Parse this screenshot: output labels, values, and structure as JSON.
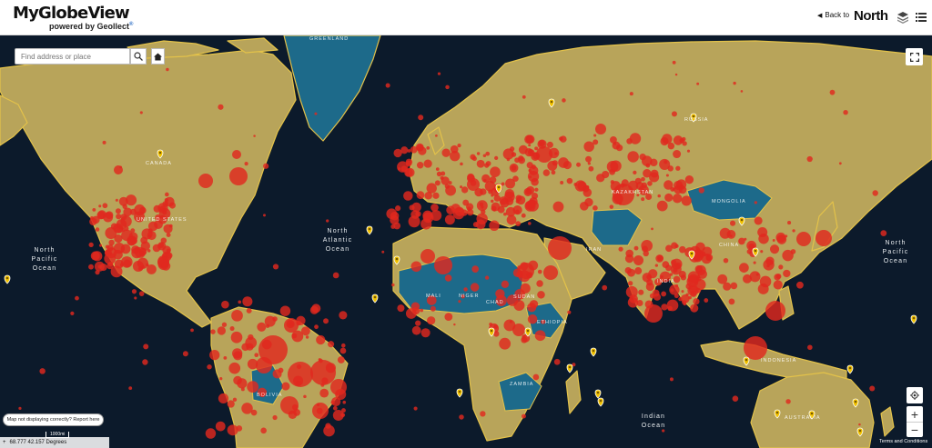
{
  "header": {
    "logo_title": "MyGlobeView",
    "logo_subtitle": "powered by Geollect",
    "logo_registered": "®",
    "back_arrow": "◀",
    "back_label": "Back to",
    "brand": "North"
  },
  "search": {
    "placeholder": "Find address or place"
  },
  "map": {
    "ocean_labels": {
      "north_atlantic": "North\nAtlantic\nOcean",
      "north_pacific_left": "North\nPacific\nOcean",
      "north_pacific_right": "North\nPacific\nOcean",
      "indian": "Indian\nOcean"
    },
    "country_labels": {
      "greenland": "GREENLAND",
      "canada": "CANADA",
      "united_states": "UNITED STATES",
      "russia": "RUSSIA",
      "kazakhstan": "KAZAKHSTAN",
      "mongolia": "MONGOLIA",
      "china": "CHINA",
      "iran": "IRAN",
      "india": "INDIA",
      "mali": "MALI",
      "niger": "NIGER",
      "chad": "CHAD",
      "sudan": "SUDAN",
      "ethiopia": "ETHIOPIA",
      "zambia": "ZAMBIA",
      "bolivia": "BOLIVIA",
      "indonesia": "INDONESIA",
      "australia": "AUSTRALIA"
    },
    "colors": {
      "ocean": "#0c1a2b",
      "land": "#b8a45a",
      "highlight_country": "#1d6a8a",
      "border": "#e3c24a",
      "hotspot": "#e0281e",
      "marker": "#f2c200"
    }
  },
  "controls": {
    "report_label": "Map not displaying correctly? Report here",
    "scale_label": "1000mi",
    "coordinates": "68.777 42.157 Degrees",
    "terms_label": "Terms and Conditions",
    "zoom_in": "+",
    "zoom_out": "−"
  }
}
